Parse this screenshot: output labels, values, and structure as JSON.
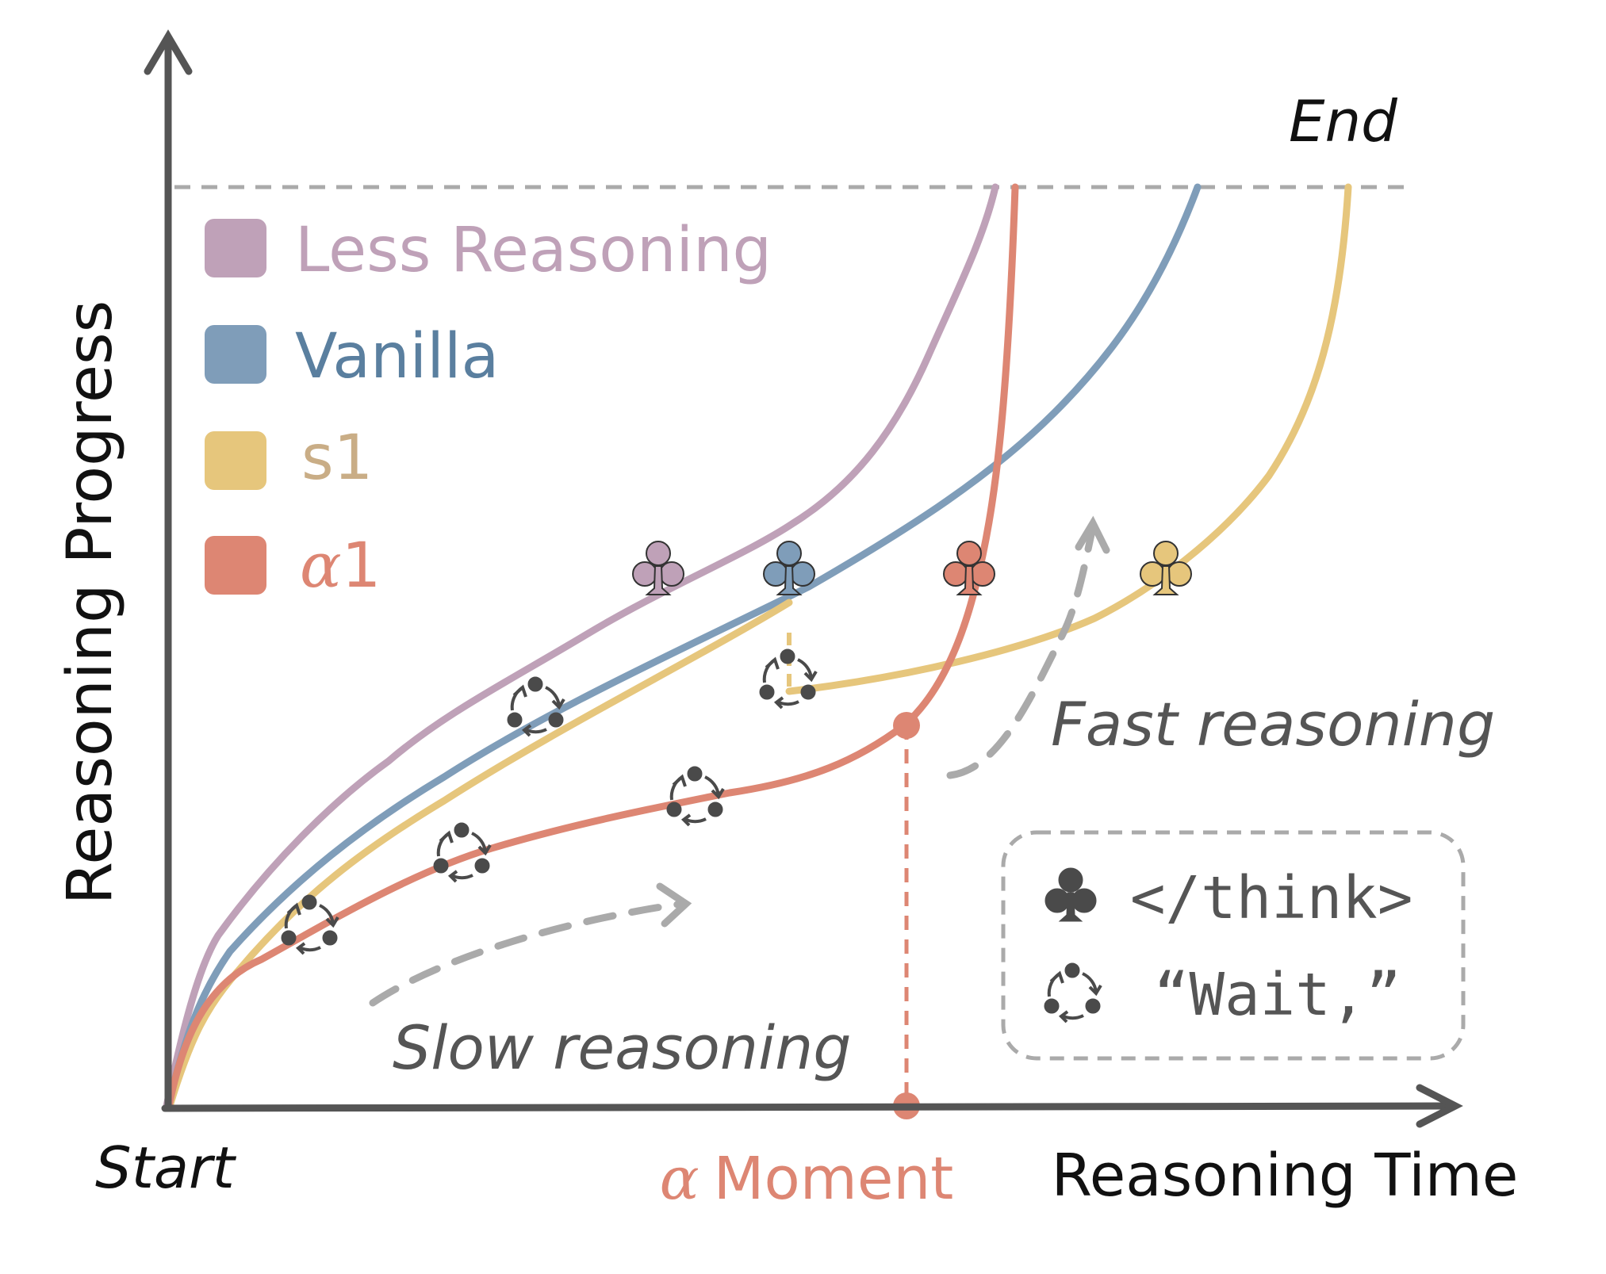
{
  "axes": {
    "y_label": "Reasoning Progress",
    "x_label": "Reasoning Time",
    "start_label": "Start",
    "end_label": "End",
    "alpha_symbol": "α",
    "alpha_moment_label": "Moment"
  },
  "legend": {
    "items": [
      {
        "label": "Less Reasoning",
        "color": "#bfa1b8"
      },
      {
        "label": "Vanilla",
        "color": "#7f9db9"
      },
      {
        "label": "s1",
        "color": "#e6c67c"
      },
      {
        "label": "1",
        "symbol": "α",
        "color": "#dd8673"
      }
    ]
  },
  "annotations": {
    "slow": "Slow reasoning",
    "fast": "Fast reasoning"
  },
  "key": {
    "think_label": "</think>",
    "wait_label": "“Wait,”"
  },
  "colors": {
    "axis": "#555555",
    "dashed": "#aaaaaa",
    "less_reasoning": "#bfa1b8",
    "vanilla": "#7f9db9",
    "s1": "#e6c67c",
    "alpha1": "#dd8673",
    "wait_icon": "#4a4a4a"
  },
  "icons": {
    "think": "club-icon",
    "wait": "cycle-arrows-icon"
  }
}
